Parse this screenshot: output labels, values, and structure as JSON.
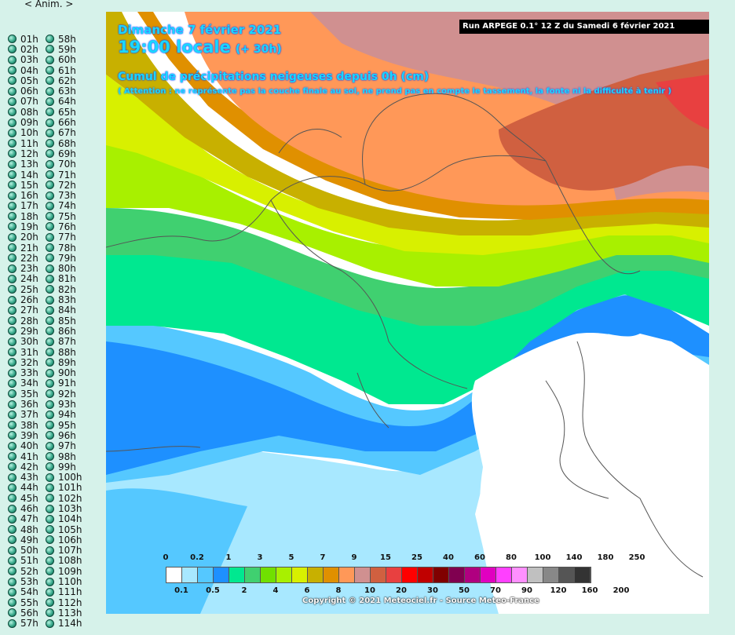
{
  "anim_link": "< Anim. >",
  "hours": [
    [
      "01h",
      "58h"
    ],
    [
      "02h",
      "59h"
    ],
    [
      "03h",
      "60h"
    ],
    [
      "04h",
      "61h"
    ],
    [
      "05h",
      "62h"
    ],
    [
      "06h",
      "63h"
    ],
    [
      "07h",
      "64h"
    ],
    [
      "08h",
      "65h"
    ],
    [
      "09h",
      "66h"
    ],
    [
      "10h",
      "67h"
    ],
    [
      "11h",
      "68h"
    ],
    [
      "12h",
      "69h"
    ],
    [
      "13h",
      "70h"
    ],
    [
      "14h",
      "71h"
    ],
    [
      "15h",
      "72h"
    ],
    [
      "16h",
      "73h"
    ],
    [
      "17h",
      "74h"
    ],
    [
      "18h",
      "75h"
    ],
    [
      "19h",
      "76h"
    ],
    [
      "20h",
      "77h"
    ],
    [
      "21h",
      "78h"
    ],
    [
      "22h",
      "79h"
    ],
    [
      "23h",
      "80h"
    ],
    [
      "24h",
      "81h"
    ],
    [
      "25h",
      "82h"
    ],
    [
      "26h",
      "83h"
    ],
    [
      "27h",
      "84h"
    ],
    [
      "28h",
      "85h"
    ],
    [
      "29h",
      "86h"
    ],
    [
      "30h",
      "87h"
    ],
    [
      "31h",
      "88h"
    ],
    [
      "32h",
      "89h"
    ],
    [
      "33h",
      "90h"
    ],
    [
      "34h",
      "91h"
    ],
    [
      "35h",
      "92h"
    ],
    [
      "36h",
      "93h"
    ],
    [
      "37h",
      "94h"
    ],
    [
      "38h",
      "95h"
    ],
    [
      "39h",
      "96h"
    ],
    [
      "40h",
      "97h"
    ],
    [
      "41h",
      "98h"
    ],
    [
      "42h",
      "99h"
    ],
    [
      "43h",
      "100h"
    ],
    [
      "44h",
      "101h"
    ],
    [
      "45h",
      "102h"
    ],
    [
      "46h",
      "103h"
    ],
    [
      "47h",
      "104h"
    ],
    [
      "48h",
      "105h"
    ],
    [
      "49h",
      "106h"
    ],
    [
      "50h",
      "107h"
    ],
    [
      "51h",
      "108h"
    ],
    [
      "52h",
      "109h"
    ],
    [
      "53h",
      "110h"
    ],
    [
      "54h",
      "111h"
    ],
    [
      "55h",
      "112h"
    ],
    [
      "56h",
      "113h"
    ],
    [
      "57h",
      "114h"
    ]
  ],
  "map": {
    "date": "Dimanche 7 février 2021",
    "time": "19:00 locale",
    "offset": "(+ 30h)",
    "variable": "Cumul de précipitations neigeuses depuis 0h (cm)",
    "warning": "( Attention : ne représente pas la couche finale au sol, ne prend pas en compte le tassement, la fonte ni la difficulté à tenir )",
    "run": "Run ARPEGE 0.1° 12 Z du Samedi 6 février 2021",
    "copyright": "Copyright © 2021 Meteociel.fr - Source Meteo-France"
  },
  "legend": {
    "top_labels": [
      "0",
      "0.2",
      "1",
      "3",
      "5",
      "7",
      "9",
      "15",
      "25",
      "40",
      "60",
      "80",
      "100",
      "140",
      "180",
      "250"
    ],
    "bottom_labels": [
      "0.1",
      "0.5",
      "2",
      "4",
      "6",
      "8",
      "10",
      "20",
      "30",
      "50",
      "70",
      "90",
      "120",
      "160",
      "200"
    ],
    "colors": [
      "#ffffff",
      "#a8e8ff",
      "#55c8ff",
      "#1e90ff",
      "#00e890",
      "#40d070",
      "#70e000",
      "#a8f000",
      "#d8f000",
      "#c8b000",
      "#e09000",
      "#ff9858",
      "#d09090",
      "#d06040",
      "#e84040",
      "#ff0000",
      "#c00000",
      "#800000",
      "#800050",
      "#b00080",
      "#e000c0",
      "#ff40ff",
      "#ff90ff",
      "#c0c0c0",
      "#888888",
      "#555555",
      "#333333"
    ]
  }
}
